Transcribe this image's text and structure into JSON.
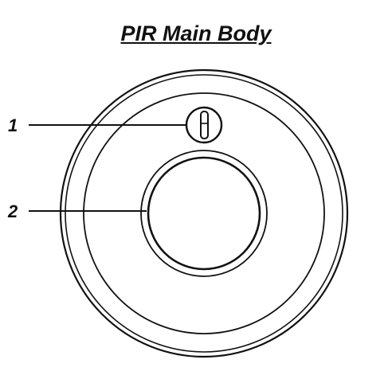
{
  "title": "PIR Main Body",
  "callouts": [
    {
      "number": "1"
    },
    {
      "number": "2"
    }
  ],
  "colors": {
    "ink": "#111111",
    "background": "#ffffff"
  }
}
